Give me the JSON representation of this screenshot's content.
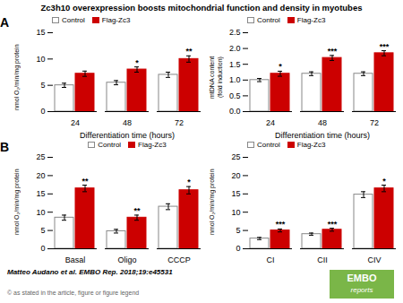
{
  "title": "Zc3h10 overexpression boosts mitochondrial function and density in myotubes",
  "panel_labels": [
    "A",
    "B"
  ],
  "footnote": "Matteo Audano et al. EMBO Rep. 2018;19:e45531",
  "copyright": "© as stated in the article, figure or figure legend",
  "logo": {
    "text": [
      "EMBO",
      "reports"
    ],
    "color": "#7ab648"
  },
  "chart_data": [
    {
      "type": "bar",
      "categories": [
        "24",
        "48",
        "72"
      ],
      "series": [
        {
          "name": "Control",
          "color": "#ffffff",
          "values": [
            5.0,
            5.5,
            7.0
          ],
          "errors": [
            0.4,
            0.4,
            0.5
          ]
        },
        {
          "name": "Flag-Zc3",
          "color": "#cc0000",
          "values": [
            7.2,
            8.0,
            10.0
          ],
          "errors": [
            0.5,
            0.5,
            0.6
          ],
          "significance": [
            null,
            "*",
            "**"
          ]
        }
      ],
      "ylabel": "nmol O₂/min/mg protein",
      "xlabel": "Differentiation time (hours)",
      "ylim": [
        0,
        15
      ],
      "yticks": [
        0,
        5,
        10,
        15
      ],
      "grid": false,
      "legend": "upper left"
    },
    {
      "type": "bar",
      "categories": [
        "24",
        "48",
        "72"
      ],
      "series": [
        {
          "name": "Control",
          "color": "#ffffff",
          "values": [
            1.0,
            1.2,
            1.2
          ],
          "errors": [
            0.05,
            0.06,
            0.06
          ]
        },
        {
          "name": "Flag-Zc3",
          "color": "#cc0000",
          "values": [
            1.2,
            1.7,
            1.85
          ],
          "errors": [
            0.08,
            0.08,
            0.08
          ],
          "significance": [
            "*",
            "***",
            "***"
          ]
        }
      ],
      "ylabel": "mtDNA content\n(fold induction)",
      "xlabel": "Differentiation time (hours)",
      "ylim": [
        0,
        2.5
      ],
      "yticks": [
        {
          "value": 0,
          "label": "0.0"
        },
        0.5,
        {
          "value": 1,
          "label": "1.0"
        },
        1.5,
        {
          "value": 2,
          "label": "2.0"
        },
        2.5
      ],
      "grid": false,
      "legend": "upper left"
    },
    {
      "type": "bar",
      "categories": [
        "Basal",
        "Oligo",
        "CCCP"
      ],
      "series": [
        {
          "name": "Control",
          "color": "#ffffff",
          "values": [
            8.5,
            4.8,
            11.5
          ],
          "errors": [
            0.7,
            0.5,
            0.8
          ]
        },
        {
          "name": "Flag-Zc3",
          "color": "#cc0000",
          "values": [
            16.5,
            8.5,
            16.0
          ],
          "errors": [
            0.9,
            0.7,
            1.0
          ],
          "significance": [
            "**",
            "**",
            "*"
          ]
        }
      ],
      "ylabel": "nmol O₂/min/mg protein",
      "ylim": [
        0,
        25
      ],
      "yticks": [
        0,
        5,
        10,
        15,
        20,
        25
      ],
      "grid": false,
      "legend": "upper center"
    },
    {
      "type": "bar",
      "categories": [
        "CI",
        "CII",
        "CIV"
      ],
      "series": [
        {
          "name": "Control",
          "color": "#ffffff",
          "values": [
            2.8,
            4.0,
            14.8
          ],
          "errors": [
            0.3,
            0.3,
            0.8
          ]
        },
        {
          "name": "Flag-Zc3",
          "color": "#cc0000",
          "values": [
            5.0,
            5.2,
            16.5
          ],
          "errors": [
            0.4,
            0.4,
            0.9
          ],
          "significance": [
            "***",
            "***",
            "*"
          ]
        }
      ],
      "ylabel": "nmol O₂/min/mg protein",
      "ylim": [
        0,
        25
      ],
      "yticks": [
        0,
        5,
        10,
        15,
        20,
        25
      ],
      "grid": false,
      "legend": "upper left"
    }
  ]
}
